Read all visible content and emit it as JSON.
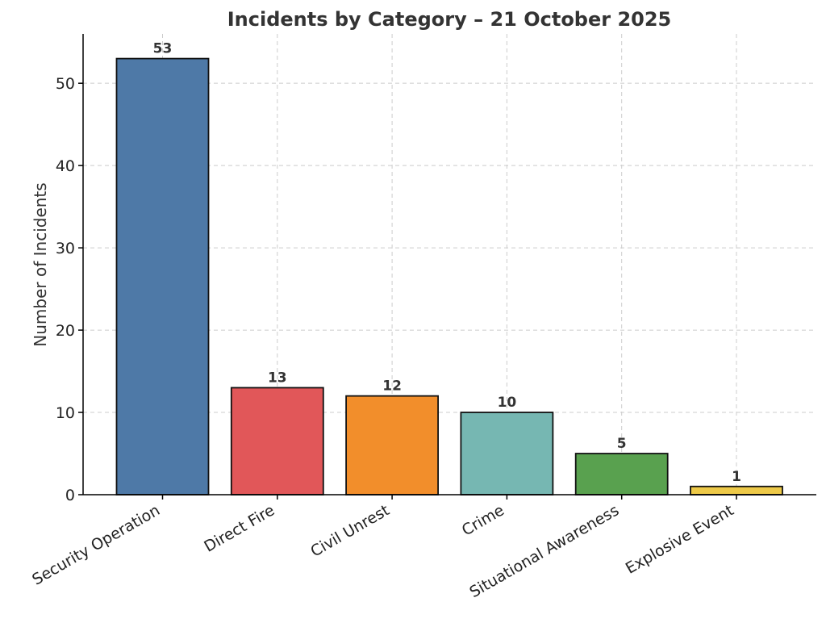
{
  "chart_data": {
    "type": "bar",
    "title": "Incidents by Category – 21 October 2025",
    "xlabel": "",
    "ylabel": "Number of Incidents",
    "categories": [
      "Security Operation",
      "Direct Fire",
      "Civil Unrest",
      "Crime",
      "Situational Awareness",
      "Explosive Event"
    ],
    "values": [
      53,
      13,
      12,
      10,
      5,
      1
    ],
    "colors": [
      "#4e79a7",
      "#e15759",
      "#f28e2b",
      "#76b7b2",
      "#59a14f",
      "#edc948"
    ],
    "ylim": [
      0,
      56
    ],
    "yticks": [
      0,
      10,
      20,
      30,
      40,
      50
    ],
    "grid": true,
    "data_labels": true
  }
}
